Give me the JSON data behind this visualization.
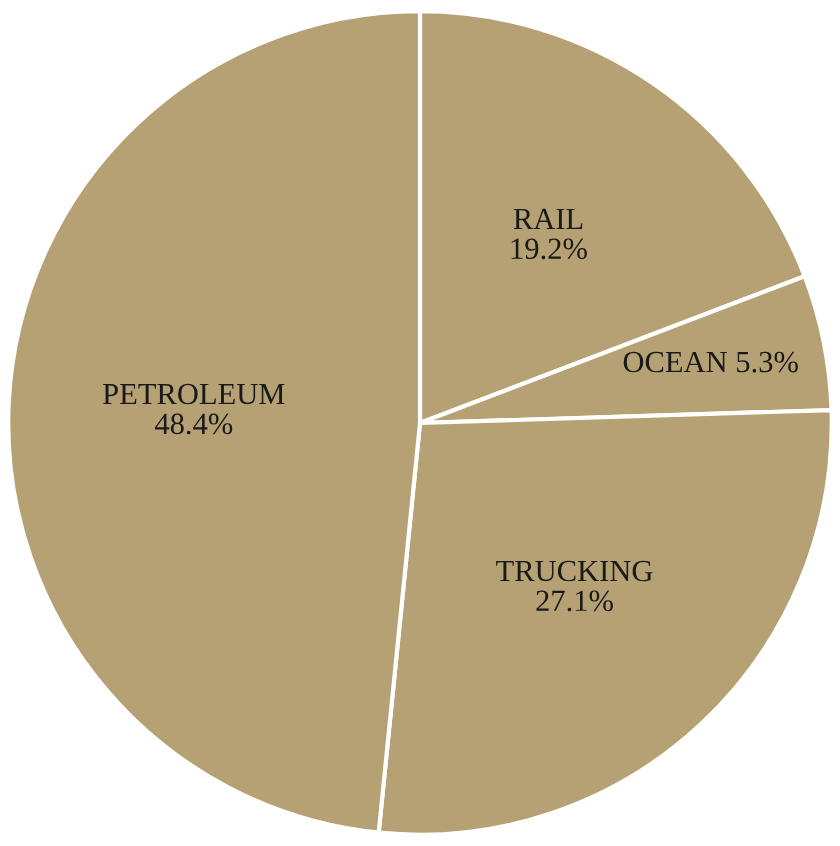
{
  "chart_data": {
    "type": "pie",
    "categories": [
      "RAIL",
      "OCEAN",
      "TRUCKING",
      "PETROLEUM"
    ],
    "values": [
      19.2,
      5.3,
      27.1,
      48.4
    ],
    "value_labels": [
      "19.2%",
      "5.3%",
      "27.1%",
      "48.4%"
    ],
    "colors": [
      "#b5a173",
      "#b5a173",
      "#b5a173",
      "#b5a173"
    ]
  }
}
